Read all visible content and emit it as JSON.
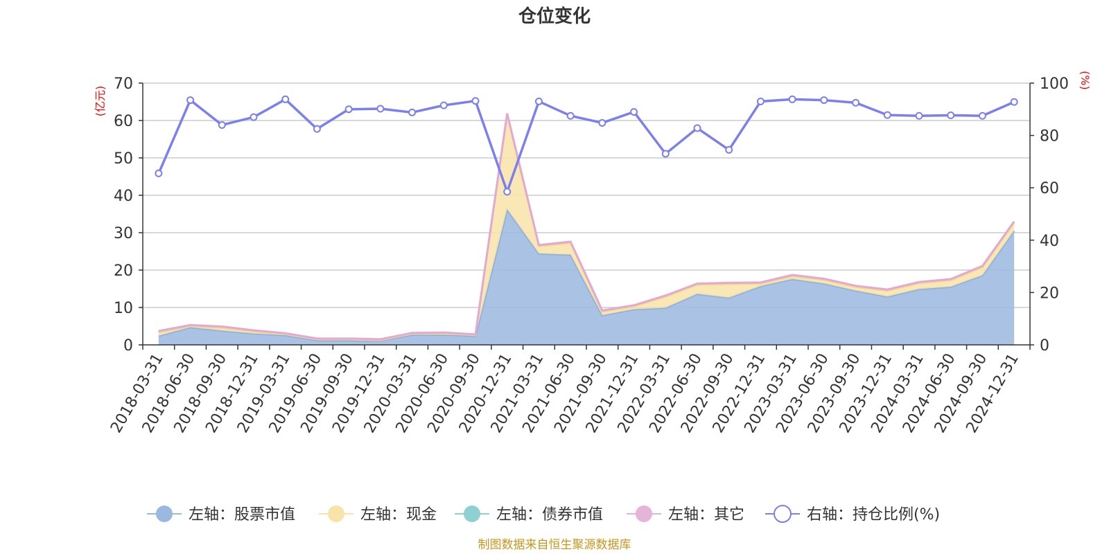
{
  "chart_data": {
    "type": "area",
    "title": "仓位变化",
    "left_axis": {
      "unit": "(亿元)",
      "ylim": [
        0,
        70
      ],
      "ticks": [
        0,
        10,
        20,
        30,
        40,
        50,
        60,
        70
      ]
    },
    "right_axis": {
      "unit": "(%)",
      "ylim": [
        0,
        100
      ],
      "ticks": [
        0,
        20,
        40,
        60,
        80,
        100
      ]
    },
    "categories": [
      "2018-03-31",
      "2018-06-30",
      "2018-09-30",
      "2018-12-31",
      "2019-03-31",
      "2019-06-30",
      "2019-09-30",
      "2019-12-31",
      "2020-03-31",
      "2020-06-30",
      "2020-09-30",
      "2020-12-31",
      "2021-03-31",
      "2021-06-30",
      "2021-09-30",
      "2021-12-31",
      "2022-03-31",
      "2022-06-30",
      "2022-09-30",
      "2022-12-31",
      "2023-03-31",
      "2023-06-30",
      "2023-09-30",
      "2023-12-31",
      "2024-03-31",
      "2024-06-30",
      "2024-09-30",
      "2024-12-31"
    ],
    "series": [
      {
        "name": "左轴：股票市值",
        "axis": "left",
        "color": "#9bb8e0",
        "values": [
          2.4,
          4.7,
          3.8,
          3.0,
          2.6,
          1.2,
          1.2,
          1.1,
          2.7,
          2.7,
          2.4,
          36.2,
          24.4,
          24.1,
          7.9,
          9.5,
          9.9,
          13.6,
          12.6,
          15.7,
          17.6,
          16.4,
          14.5,
          12.9,
          14.9,
          15.5,
          18.6,
          30.5
        ]
      },
      {
        "name": "左轴：现金",
        "axis": "left",
        "color": "#f8e4a8",
        "values": [
          1.0,
          0.3,
          0.8,
          0.6,
          0.3,
          0.3,
          0.3,
          0.2,
          0.3,
          0.4,
          0.2,
          25.4,
          2.0,
          3.2,
          1.0,
          0.8,
          3.0,
          2.5,
          3.7,
          0.7,
          0.8,
          1.0,
          1.0,
          1.6,
          1.6,
          1.8,
          2.2,
          2.2
        ]
      },
      {
        "name": "左轴：债券市值",
        "axis": "left",
        "color": "#8fd1d2",
        "values": [
          0,
          0,
          0,
          0,
          0,
          0,
          0,
          0,
          0,
          0,
          0,
          0,
          0,
          0,
          0,
          0,
          0,
          0,
          0,
          0,
          0,
          0,
          0,
          0,
          0,
          0,
          0,
          0
        ]
      },
      {
        "name": "左轴：其它",
        "axis": "left",
        "color": "#e6b4d8",
        "values": [
          0.3,
          0.3,
          0.3,
          0.3,
          0.2,
          0.2,
          0.2,
          0.2,
          0.2,
          0.2,
          0.2,
          0.3,
          0.3,
          0.3,
          0.3,
          0.3,
          0.3,
          0.3,
          0.3,
          0.3,
          0.3,
          0.3,
          0.3,
          0.3,
          0.3,
          0.3,
          0.3,
          0.3
        ]
      },
      {
        "name": "右轴：持仓比例(%)",
        "axis": "right",
        "color": "#7b7ff0",
        "values": [
          65.5,
          93.5,
          84,
          87,
          93.8,
          82.5,
          90,
          90.2,
          88.8,
          91.5,
          93.2,
          58.5,
          93,
          87.5,
          84.8,
          89,
          73,
          82.8,
          74.5,
          93,
          93.8,
          93.5,
          92.5,
          87.8,
          87.5,
          87.7,
          87.5,
          92.8
        ]
      }
    ],
    "legend_position": "bottom"
  },
  "source_text": "制图数据来自恒生聚源数据库"
}
